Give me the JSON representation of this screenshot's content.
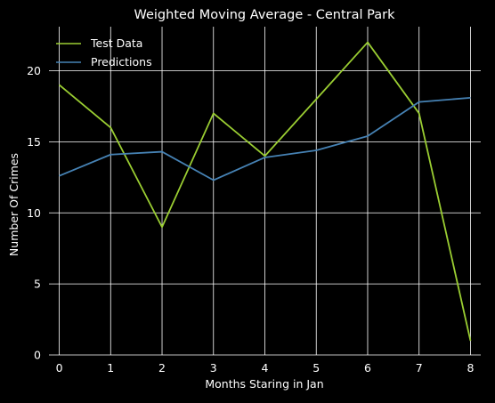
{
  "chart_data": {
    "type": "line",
    "title": "Weighted Moving Average - Central Park",
    "xlabel": "Months Staring in Jan",
    "ylabel": "Number Of Crimes",
    "x": [
      0,
      1,
      2,
      3,
      4,
      5,
      6,
      7,
      8
    ],
    "xlim": [
      -0.2,
      8.2
    ],
    "ylim": [
      0,
      23.1
    ],
    "x_ticks": [
      "0",
      "1",
      "2",
      "3",
      "4",
      "5",
      "6",
      "7",
      "8"
    ],
    "y_ticks": [
      "0",
      "5",
      "10",
      "15",
      "20"
    ],
    "grid": true,
    "legend_position": "top-left",
    "background": "#000000",
    "series": [
      {
        "name": "Test Data",
        "color": "#9acd32",
        "values": [
          19,
          16,
          9,
          17,
          14,
          18,
          22,
          17,
          1
        ]
      },
      {
        "name": "Predictions",
        "color": "#4682b4",
        "values": [
          12.6,
          14.1,
          14.3,
          12.3,
          13.9,
          14.4,
          15.4,
          17.8,
          18.1
        ]
      }
    ]
  }
}
